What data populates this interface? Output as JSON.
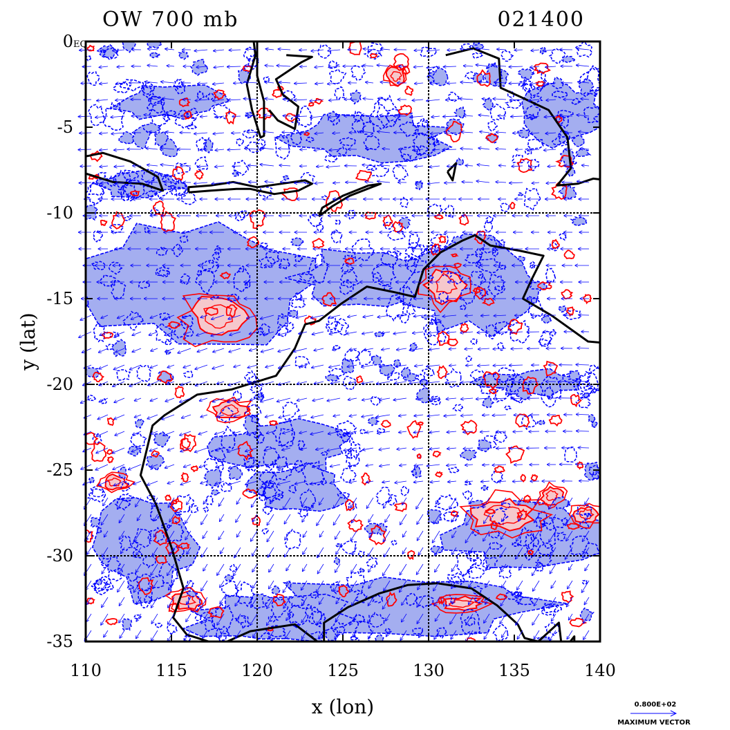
{
  "title": {
    "left": "OW 700 mb",
    "right": "021400"
  },
  "colors": {
    "positive_contour": "#ff0000",
    "positive_fill": "#f5c8cc",
    "negative_contour": "#0000ff",
    "negative_fill": "#a4aef0",
    "vector": "#0000ff",
    "coastline": "#000000",
    "gridline": "#000000",
    "background": "#ffffff"
  },
  "map": {
    "lon_range": [
      110,
      140
    ],
    "lat_range": [
      -35,
      0
    ],
    "xlabel": "x (lon)",
    "ylabel": "y (lat)",
    "x_ticks": [
      {
        "value": 110,
        "label": "110"
      },
      {
        "value": 115,
        "label": "115"
      },
      {
        "value": 120,
        "label": "120"
      },
      {
        "value": 125,
        "label": "125"
      },
      {
        "value": 130,
        "label": "130"
      },
      {
        "value": 135,
        "label": "135"
      },
      {
        "value": 140,
        "label": "140"
      }
    ],
    "y_ticks": [
      {
        "value": 0,
        "label": "0"
      },
      {
        "value": -5,
        "label": "-5"
      },
      {
        "value": -10,
        "label": "-10"
      },
      {
        "value": -15,
        "label": "-15"
      },
      {
        "value": -20,
        "label": "-20"
      },
      {
        "value": -25,
        "label": "-25"
      },
      {
        "value": -30,
        "label": "-30"
      },
      {
        "value": -35,
        "label": "-35"
      }
    ],
    "gridlines_lon": [
      120,
      130
    ],
    "gridlines_lat": [
      -10,
      -20,
      -30
    ],
    "corner_tag": "EQ",
    "grid": "dotted",
    "projection": "lat-lon"
  },
  "legend": {
    "value": "0.800E+02",
    "label": "MAXIMUM VECTOR",
    "placement": "bottom-right"
  },
  "coastlines": [
    {
      "name": "western-australia",
      "points": [
        [
          123.9,
          -35.3
        ],
        [
          122.2,
          -34.0
        ],
        [
          119.6,
          -34.4
        ],
        [
          117.8,
          -35.2
        ],
        [
          115.9,
          -34.6
        ],
        [
          115.1,
          -33.6
        ],
        [
          115.7,
          -31.9
        ],
        [
          115.0,
          -29.5
        ],
        [
          114.1,
          -27.0
        ],
        [
          113.2,
          -25.3
        ],
        [
          113.9,
          -22.4
        ],
        [
          114.6,
          -21.8
        ],
        [
          116.5,
          -20.6
        ],
        [
          118.5,
          -20.3
        ],
        [
          121.1,
          -19.5
        ],
        [
          122.2,
          -17.9
        ],
        [
          122.8,
          -16.5
        ],
        [
          123.6,
          -16.3
        ],
        [
          124.9,
          -15.3
        ],
        [
          126.4,
          -14.3
        ],
        [
          127.9,
          -14.6
        ],
        [
          129.2,
          -14.9
        ],
        [
          129.7,
          -13.3
        ],
        [
          130.7,
          -12.3
        ],
        [
          132.0,
          -11.6
        ],
        [
          132.7,
          -11.3
        ],
        [
          133.6,
          -11.9
        ],
        [
          135.3,
          -12.2
        ],
        [
          136.7,
          -12.5
        ],
        [
          136.0,
          -13.9
        ],
        [
          135.5,
          -15.0
        ],
        [
          137.2,
          -16.0
        ],
        [
          139.3,
          -17.5
        ],
        [
          140.5,
          -17.6
        ]
      ]
    },
    {
      "name": "south-australia-coast",
      "points": [
        [
          140.5,
          -38.0
        ],
        [
          139.7,
          -37.0
        ],
        [
          139.3,
          -35.9
        ],
        [
          138.5,
          -35.6
        ],
        [
          138.5,
          -34.7
        ],
        [
          137.8,
          -35.6
        ],
        [
          137.6,
          -33.9
        ],
        [
          136.4,
          -35.0
        ],
        [
          135.6,
          -34.8
        ],
        [
          135.2,
          -34.0
        ],
        [
          134.0,
          -32.9
        ],
        [
          132.5,
          -31.9
        ],
        [
          130.5,
          -31.6
        ],
        [
          128.8,
          -31.7
        ],
        [
          127.1,
          -32.2
        ],
        [
          125.3,
          -33.0
        ],
        [
          123.9,
          -33.9
        ],
        [
          123.9,
          -35.3
        ]
      ]
    },
    {
      "name": "sumbawa-flores",
      "points": [
        [
          116.0,
          -8.8
        ],
        [
          117.3,
          -8.7
        ],
        [
          118.8,
          -8.6
        ],
        [
          119.6,
          -8.6
        ],
        [
          121.0,
          -8.9
        ],
        [
          122.4,
          -8.7
        ],
        [
          123.2,
          -8.3
        ],
        [
          122.8,
          -8.1
        ],
        [
          121.4,
          -8.3
        ],
        [
          120.0,
          -8.5
        ],
        [
          118.6,
          -8.2
        ],
        [
          117.3,
          -8.4
        ],
        [
          116.0,
          -8.5
        ],
        [
          116.0,
          -8.8
        ]
      ]
    },
    {
      "name": "timor",
      "points": [
        [
          123.6,
          -10.2
        ],
        [
          124.4,
          -9.6
        ],
        [
          125.4,
          -9.0
        ],
        [
          127.2,
          -8.3
        ],
        [
          126.5,
          -8.4
        ],
        [
          125.0,
          -9.0
        ],
        [
          123.8,
          -9.7
        ],
        [
          123.6,
          -10.2
        ]
      ]
    },
    {
      "name": "java",
      "points": [
        [
          110.0,
          -7.7
        ],
        [
          111.6,
          -8.2
        ],
        [
          113.3,
          -8.3
        ],
        [
          114.5,
          -8.7
        ],
        [
          114.2,
          -7.9
        ],
        [
          112.6,
          -7.0
        ],
        [
          111.0,
          -6.5
        ],
        [
          110.0,
          -6.7
        ]
      ]
    },
    {
      "name": "sulawesi",
      "points": [
        [
          120.0,
          0.0
        ],
        [
          120.0,
          -2.0
        ],
        [
          120.4,
          -3.5
        ],
        [
          120.4,
          -5.5
        ],
        [
          120.2,
          -5.6
        ],
        [
          119.7,
          -4.0
        ],
        [
          119.4,
          -2.5
        ],
        [
          119.9,
          -0.8
        ],
        [
          119.8,
          0.0
        ]
      ]
    },
    {
      "name": "sulawesi-east-arm",
      "points": [
        [
          120.7,
          -4.0
        ],
        [
          121.2,
          -4.6
        ],
        [
          122.2,
          -5.1
        ],
        [
          122.4,
          -3.8
        ],
        [
          121.5,
          -3.1
        ],
        [
          121.1,
          -2.2
        ],
        [
          122.6,
          -1.2
        ],
        [
          123.2,
          -0.9
        ],
        [
          121.7,
          -0.8
        ]
      ]
    },
    {
      "name": "new-guinea-south",
      "points": [
        [
          131.0,
          -0.8
        ],
        [
          132.6,
          -0.4
        ],
        [
          134.1,
          -1.0
        ],
        [
          134.2,
          -2.7
        ],
        [
          135.5,
          -3.3
        ],
        [
          137.0,
          -4.0
        ],
        [
          138.1,
          -5.6
        ],
        [
          138.3,
          -7.4
        ],
        [
          137.5,
          -8.4
        ],
        [
          138.7,
          -8.3
        ],
        [
          139.6,
          -8.0
        ],
        [
          140.5,
          -8.1
        ]
      ]
    },
    {
      "name": "tanimbar",
      "points": [
        [
          131.1,
          -7.6
        ],
        [
          131.6,
          -7.1
        ],
        [
          131.4,
          -8.1
        ],
        [
          131.1,
          -7.6
        ]
      ]
    }
  ],
  "positive_regions": [
    {
      "center": [
        117.7,
        -16.1
      ],
      "rx": 1.6,
      "ry": 1.2
    },
    {
      "center": [
        131.0,
        -14.2
      ],
      "rx": 1.1,
      "ry": 1.0
    },
    {
      "center": [
        134.4,
        -27.6
      ],
      "rx": 1.8,
      "ry": 0.9
    },
    {
      "center": [
        137.2,
        -26.5
      ],
      "rx": 0.6,
      "ry": 0.5
    },
    {
      "center": [
        139.2,
        -27.6
      ],
      "rx": 0.7,
      "ry": 0.5
    },
    {
      "center": [
        111.7,
        -25.7
      ],
      "rx": 0.7,
      "ry": 0.4
    },
    {
      "center": [
        118.4,
        -21.5
      ],
      "rx": 1.0,
      "ry": 0.5
    },
    {
      "center": [
        115.9,
        -32.6
      ],
      "rx": 0.8,
      "ry": 0.5
    },
    {
      "center": [
        131.9,
        -32.8
      ],
      "rx": 1.2,
      "ry": 0.4
    },
    {
      "center": [
        128.1,
        -2.0
      ],
      "rx": 0.5,
      "ry": 0.5
    }
  ],
  "negative_regions": [
    {
      "center": [
        116.6,
        -14.0
      ],
      "rx": 6.5,
      "ry": 3.5
    },
    {
      "center": [
        126.7,
        -13.8
      ],
      "rx": 4.8,
      "ry": 1.6
    },
    {
      "center": [
        132.9,
        -14.3
      ],
      "rx": 4.0,
      "ry": 2.6
    },
    {
      "center": [
        137.7,
        -4.2
      ],
      "rx": 2.3,
      "ry": 1.8
    },
    {
      "center": [
        128.7,
        -32.8
      ],
      "rx": 7.8,
      "ry": 1.6
    },
    {
      "center": [
        121.0,
        -33.7
      ],
      "rx": 5.0,
      "ry": 1.4
    },
    {
      "center": [
        113.4,
        -29.5
      ],
      "rx": 2.8,
      "ry": 2.8
    },
    {
      "center": [
        121.6,
        -23.6
      ],
      "rx": 4.0,
      "ry": 1.4
    },
    {
      "center": [
        135.6,
        -28.8
      ],
      "rx": 4.2,
      "ry": 2.1
    },
    {
      "center": [
        115.1,
        -3.5
      ],
      "rx": 3.3,
      "ry": 1.0
    },
    {
      "center": [
        126.4,
        -5.6
      ],
      "rx": 4.5,
      "ry": 1.4
    },
    {
      "center": [
        113.1,
        -8.3
      ],
      "rx": 2.6,
      "ry": 0.7
    },
    {
      "center": [
        136.4,
        -19.9
      ],
      "rx": 3.3,
      "ry": 0.7
    },
    {
      "center": [
        122.4,
        -26.2
      ],
      "rx": 2.6,
      "ry": 1.4
    }
  ]
}
